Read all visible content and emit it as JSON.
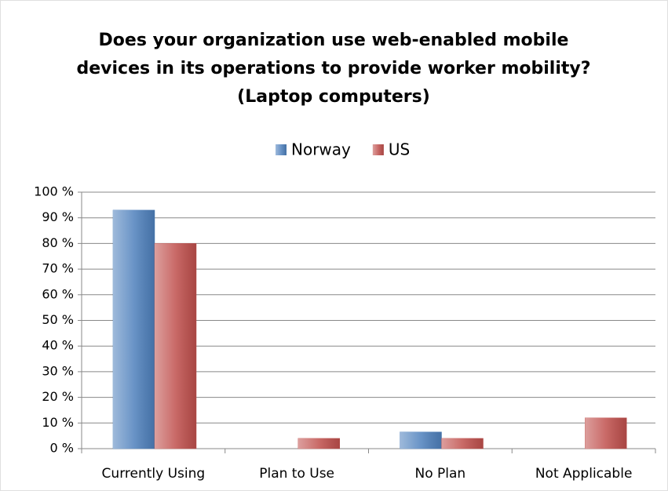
{
  "chart_data": {
    "type": "bar",
    "title": [
      "Does your organization use web-enabled mobile",
      "devices in its operations to provide worker mobility?",
      "(Laptop computers)"
    ],
    "categories": [
      "Currently Using",
      "Plan to Use",
      "No Plan",
      "Not Applicable"
    ],
    "series": [
      {
        "name": "Norway",
        "color": "#4f81bd",
        "values": [
          93,
          0,
          6.5,
          0
        ]
      },
      {
        "name": "US",
        "color": "#c0504d",
        "values": [
          80,
          4,
          4,
          12
        ]
      }
    ],
    "ylim": [
      0,
      100
    ],
    "yticks": [
      {
        "value": 0,
        "label": "0 %"
      },
      {
        "value": 10,
        "label": "10 %"
      },
      {
        "value": 20,
        "label": "20 %"
      },
      {
        "value": 30,
        "label": "30 %"
      },
      {
        "value": 40,
        "label": "40 %"
      },
      {
        "value": 50,
        "label": "50 %"
      },
      {
        "value": 60,
        "label": "60 %"
      },
      {
        "value": 70,
        "label": "70 %"
      },
      {
        "value": 80,
        "label": "80 %"
      },
      {
        "value": 90,
        "label": "90 %"
      },
      {
        "value": 100,
        "label": "100 %"
      }
    ],
    "grid": true,
    "legend": "top"
  }
}
